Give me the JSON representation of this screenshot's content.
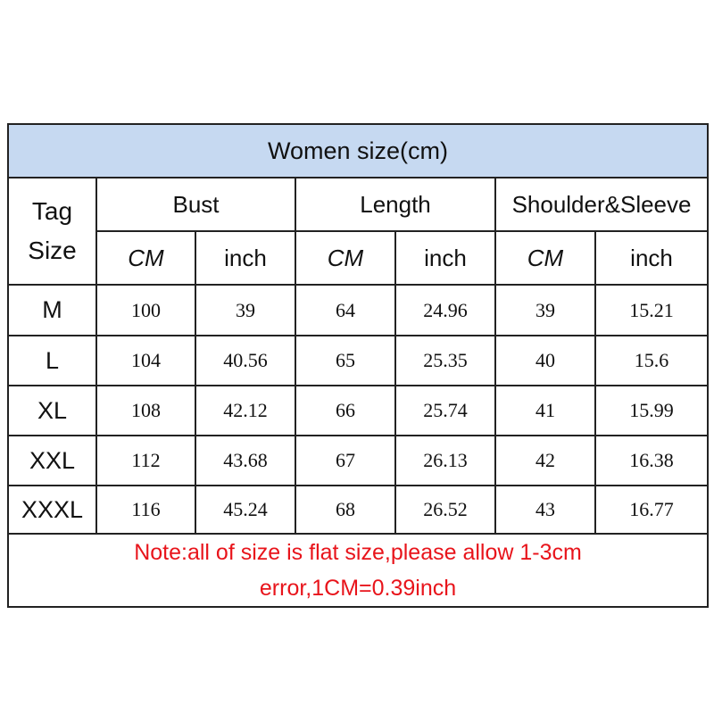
{
  "title": "Women size(cm)",
  "tag_header": [
    "Tag",
    "Size"
  ],
  "groups": [
    "Bust",
    "Length",
    "Shoulder&Sleeve"
  ],
  "units": [
    "CM",
    "inch",
    "CM",
    "inch",
    "CM",
    "inch"
  ],
  "rows": [
    {
      "size": "M",
      "values": [
        "100",
        "39",
        "64",
        "24.96",
        "39",
        "15.21"
      ]
    },
    {
      "size": "L",
      "values": [
        "104",
        "40.56",
        "65",
        "25.35",
        "40",
        "15.6"
      ]
    },
    {
      "size": "XL",
      "values": [
        "108",
        "42.12",
        "66",
        "25.74",
        "41",
        "15.99"
      ]
    },
    {
      "size": "XXL",
      "values": [
        "112",
        "43.68",
        "67",
        "26.13",
        "42",
        "16.38"
      ]
    },
    {
      "size": "XXXL",
      "values": [
        "116",
        "45.24",
        "68",
        "26.52",
        "43",
        "16.77"
      ]
    }
  ],
  "note": [
    "Note:all of size is flat size,please allow 1-3cm",
    "error,1CM=0.39inch"
  ],
  "colors": {
    "header_bg": "#c6d9f1",
    "note": "#e8141b"
  }
}
